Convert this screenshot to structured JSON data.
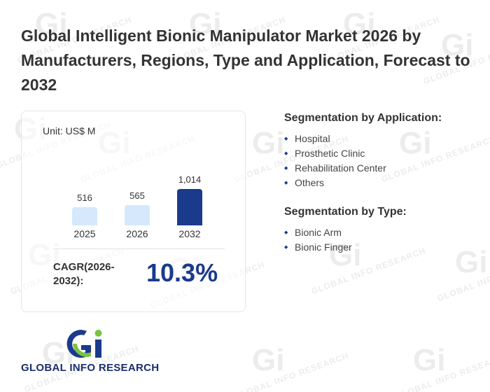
{
  "title": "Global Intelligent Bionic Manipulator Market 2026 by Manufacturers, Regions, Type and Application, Forecast to 2032",
  "chart_data": {
    "type": "bar",
    "unit_label": "Unit: US$ M",
    "categories": [
      "2025",
      "2026",
      "2032"
    ],
    "values": [
      516,
      565,
      1014
    ],
    "value_labels": [
      "516",
      "565",
      "1,014"
    ],
    "colors": [
      "#d6e8fb",
      "#d6e8fb",
      "#1a3a8c"
    ],
    "title": "",
    "xlabel": "",
    "ylabel": ""
  },
  "cagr": {
    "label": "CAGR(2026-2032):",
    "value": "10.3%"
  },
  "segments": {
    "application": {
      "heading": "Segmentation by Application:",
      "items": [
        "Hospital",
        "Prosthetic Clinic",
        "Rehabilitation Center",
        "Others"
      ]
    },
    "type": {
      "heading": "Segmentation by Type:",
      "items": [
        "Bionic Arm",
        "Bionic Finger"
      ]
    }
  },
  "logo": {
    "text": "GLOBAL INFO RESEARCH"
  },
  "watermark": {
    "text": "GLOBAL INFO RESEARCH"
  }
}
